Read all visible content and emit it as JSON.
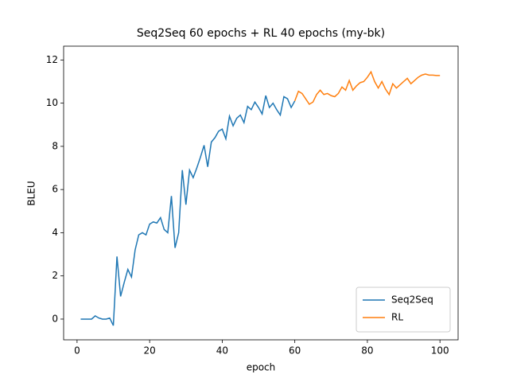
{
  "chart_data": {
    "type": "line",
    "title": "Seq2Seq 60 epochs + RL 40 epochs (my-bk)",
    "x_label": "epoch",
    "y_label": "BLEU",
    "xlim": [
      -3.7,
      105
    ],
    "ylim": [
      -0.96,
      12.64
    ],
    "xticks": [
      0,
      20,
      40,
      60,
      80,
      100
    ],
    "yticks": [
      0,
      2,
      4,
      6,
      8,
      10,
      12
    ],
    "legend_position": "lower right",
    "series": [
      {
        "name": "Seq2Seq",
        "color": "#1f77b4",
        "x": [
          1,
          2,
          3,
          4,
          5,
          6,
          7,
          8,
          9,
          10,
          11,
          12,
          13,
          14,
          15,
          16,
          17,
          18,
          19,
          20,
          21,
          22,
          23,
          24,
          25,
          26,
          27,
          28,
          29,
          30,
          31,
          32,
          33,
          34,
          35,
          36,
          37,
          38,
          39,
          40,
          41,
          42,
          43,
          44,
          45,
          46,
          47,
          48,
          49,
          50,
          51,
          52,
          53,
          54,
          55,
          56,
          57,
          58,
          59,
          60
        ],
        "values": [
          0,
          0,
          0,
          0,
          0.15,
          0.05,
          0,
          0,
          0.05,
          -0.3,
          2.9,
          1.05,
          1.7,
          2.3,
          1.95,
          3.2,
          3.9,
          4.0,
          3.9,
          4.4,
          4.5,
          4.45,
          4.7,
          4.15,
          4.0,
          5.7,
          3.3,
          4.0,
          6.9,
          5.3,
          6.9,
          6.55,
          7.0,
          7.5,
          8.05,
          7.05,
          8.2,
          8.4,
          8.7,
          8.8,
          8.35,
          9.4,
          8.95,
          9.3,
          9.45,
          9.1,
          9.85,
          9.7,
          10.05,
          9.8,
          9.5,
          10.35,
          9.8,
          10.0,
          9.7,
          9.45,
          10.3,
          10.2,
          9.8,
          10.1
        ]
      },
      {
        "name": "RL",
        "color": "#ff7f0e",
        "x": [
          60,
          61,
          62,
          63,
          64,
          65,
          66,
          67,
          68,
          69,
          70,
          71,
          72,
          73,
          74,
          75,
          76,
          77,
          78,
          79,
          80,
          81,
          82,
          83,
          84,
          85,
          86,
          87,
          88,
          89,
          90,
          91,
          92,
          93,
          94,
          95,
          96,
          97,
          98,
          99,
          100
        ],
        "values": [
          10.1,
          10.55,
          10.45,
          10.2,
          9.95,
          10.05,
          10.4,
          10.6,
          10.4,
          10.45,
          10.35,
          10.3,
          10.45,
          10.75,
          10.6,
          11.05,
          10.6,
          10.8,
          10.95,
          11.0,
          11.2,
          11.45,
          11.0,
          10.7,
          11.0,
          10.65,
          10.4,
          10.9,
          10.7,
          10.85,
          11.0,
          11.15,
          10.9,
          11.05,
          11.2,
          11.3,
          11.35,
          11.3,
          11.3,
          11.28,
          11.28
        ]
      }
    ]
  }
}
